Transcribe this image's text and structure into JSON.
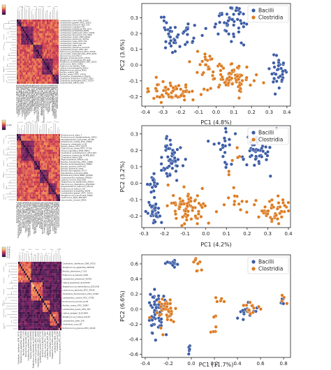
{
  "heatmap_panels": [
    {
      "colorbar_ticks": [],
      "labels": [
        "Lactobacillus_iners_DSM_13335",
        "Lactobacillus_gasseri_ATCC_33323",
        "Lactobacillus_johnsonii_NCC_533",
        "Lactobacillus_crispatus_ST1",
        "Lactobacillus_helveticus_DPC_4571",
        "Lactobacillus_acidophilus_NCFM",
        "Lactobacillus_delbrueckii_ATCC_11842",
        "Lactobacillus_fermentum_IFO_3956",
        "Lactobacillus_reuteri_DSM_20016",
        "Lactobacillus_plantarum_WCFS1",
        "Lactobacillus_casei_ATCC_334",
        "Lactobacillus_rhamnosus_GG",
        "Lactobacillus_sakei_23K",
        "Lactobacillus_salivarius_UCC118",
        "Lactobacillus_brevis_ATCC_367",
        "Pediococcus_pentosaceus_ATCC_25745",
        "Leuconostoc_mesenteroides_ATCC_8293",
        "Oenococcus_oeni_PSU-1",
        "Weissella_koreensis_KACC_15510",
        "Streptococcus_pyogenes_M1_GAS",
        "Streptococcus_thermophilus_LMG_18311",
        "Lactococcus_lactis_Il1403",
        "Enterococcus_faecalis_V583",
        "Listeria_monocytogenes_EGD-e",
        "Staphylococcus_aureus_N315",
        "Bacillus_subtilis_168",
        "Bacillus_cereus_ATCC_14579",
        "Geobacillus_kaustophilus_HTA426",
        "Clostridium_botulinum_A_ATCC_3502",
        "Clostridium_perfringens_ATCC_13124",
        "Clostridioides_difficile_630"
      ]
    },
    {
      "colorbar_ticks": [
        "0.45"
      ],
      "labels": [
        "Ruminococcus_albus_7",
        "Ruminococcus_champanellensis_18P13",
        "Faecalibacterium_prausnitzii_A2-165",
        "Eubacterium_rectale_ATCC_33656",
        "Roseburia_intestinalis_L1-82",
        "Blautia_obeum_ATCC_29174",
        "Coprococcus_comes_ATCC_27758",
        "Dorea_longicatena_DSM_13814",
        "Clostridium_acetobutylicum_ATCC_824",
        "Clostridium_beijerinckii_NCIMB_8052",
        "Clostridium_tetani_E88",
        "Peptoclostridium_difficile_630",
        "Bacillus_licheniformis_ATCC_14580",
        "Bacillus_amyloliquefaciens_FZB42",
        "Bacillus_pumilus_SAFR-032",
        "Bacillus_anthracis_Ames",
        "Bacillus_thuringiensis_97-27",
        "Paenibacillus_polymyxa_E681",
        "Brevibacillus_brevis_NBRC_100599",
        "Oceanobacillus_iheyensis_HTE831",
        "Listeria_innocua_Clip11262",
        "Staphylococcus_epidermidis_RP62A",
        "Macrococcus_caseolyticus_JCSC5402",
        "Exiguobacterium_sibiricum_255-15",
        "Enterococcus_faecium_DO",
        "Lactobacillus_acidophilus_NCFM",
        "Lactobacillus_gasseri_ATCC_33323",
        "Streptococcus_pneumoniae_TIGR4",
        "Lactococcus_lactis_MG1363",
        "Leuconostoc_citreum_KM20"
      ]
    },
    {
      "colorbar_ticks": [
        "1.0",
        "0.8",
        "0.6",
        "0.4",
        "0.2"
      ],
      "labels": [
        "Clostridium_clariflavum_DSM_19732",
        "Streptococcus_agalactiae_2603V/R",
        "Bacillus_halodurans_C-125",
        "Enterococcus_faecalis_V583",
        "Lactobacillus_plantarum_WCFS1",
        "Listeria_welshimeri_SLCC5334",
        "Staphylococcus_haemolyticus_JCSC1435",
        "Lactococcus_garvieae_ATCC_49156",
        "Clostridium_thermocellum_ATCC_27405",
        "Lactobacillus_ruminis_ATCC_27782",
        "Ruminococcus_bromii_L2-63",
        "Bacillus_cereus_ATCC_10987",
        "Lactobacillus_brevis_ATCC_367",
        "Listeria_seeligeri_SLCC3954",
        "Streptococcus_mutans_UA159",
        "Lactobacillus_sakei_23K",
        "Clostridium_novyi_NT",
        "Ruminococcus_gnavus_ATCC_29149"
      ]
    }
  ],
  "chart_data": [
    {
      "type": "scatter",
      "xlabel": "PC1 (4.8%)",
      "ylabel": "PC2 (3.6%)",
      "xlim": [
        -0.42,
        0.42
      ],
      "ylim": [
        -0.26,
        0.39
      ],
      "xticks": [
        -0.4,
        -0.3,
        -0.2,
        -0.1,
        0.0,
        0.1,
        0.2,
        0.3,
        0.4
      ],
      "yticks": [
        -0.2,
        -0.1,
        0.0,
        0.1,
        0.2,
        0.3
      ],
      "legend": "top-right",
      "colors": [
        "#3b5ba5",
        "#dd7a1f"
      ],
      "series": [
        {
          "name": "Bacilli",
          "clusters": [
            {
              "n": 45,
              "cx": -0.21,
              "cy": 0.19,
              "sx": 0.065,
              "sy": 0.05,
              "seed": 11
            },
            {
              "n": 45,
              "cx": 0.08,
              "cy": 0.29,
              "sx": 0.04,
              "sy": 0.045,
              "seed": 12
            },
            {
              "n": 40,
              "cx": 0.35,
              "cy": -0.045,
              "sx": 0.035,
              "sy": 0.05,
              "seed": 13
            },
            {
              "n": 5,
              "cx": 0.12,
              "cy": 0.17,
              "sx": 0.03,
              "sy": 0.03,
              "seed": 14
            }
          ]
        },
        {
          "name": "Clostridia",
          "clusters": [
            {
              "n": 65,
              "cx": -0.26,
              "cy": -0.17,
              "sx": 0.075,
              "sy": 0.035,
              "seed": 21
            },
            {
              "n": 75,
              "cx": 0.08,
              "cy": -0.075,
              "sx": 0.06,
              "sy": 0.04,
              "seed": 22
            },
            {
              "n": 20,
              "cx": -0.08,
              "cy": 0.02,
              "sx": 0.05,
              "sy": 0.045,
              "seed": 23
            }
          ]
        }
      ]
    },
    {
      "type": "scatter",
      "xlabel": "PC1 (4.2%)",
      "ylabel": "PC2 (3.2%)",
      "xlim": [
        -0.31,
        0.41
      ],
      "ylim": [
        -0.27,
        0.35
      ],
      "xticks": [
        -0.3,
        -0.2,
        -0.1,
        0.0,
        0.1,
        0.2,
        0.3,
        0.4
      ],
      "yticks": [
        -0.2,
        -0.1,
        0.0,
        0.1,
        0.2,
        0.3
      ],
      "legend": "top-right",
      "colors": [
        "#3b5ba5",
        "#dd7a1f"
      ],
      "series": [
        {
          "name": "Bacilli",
          "clusters": [
            {
              "n": 55,
              "cx": -0.17,
              "cy": 0.15,
              "sx": 0.025,
              "sy": 0.065,
              "seed": 31
            },
            {
              "n": 35,
              "cx": -0.25,
              "cy": -0.17,
              "sx": 0.018,
              "sy": 0.035,
              "seed": 32
            },
            {
              "n": 15,
              "cx": -0.26,
              "cy": 0.0,
              "sx": 0.015,
              "sy": 0.035,
              "seed": 33
            },
            {
              "n": 45,
              "cx": 0.24,
              "cy": 0.2,
              "sx": 0.04,
              "sy": 0.055,
              "seed": 34
            },
            {
              "n": 20,
              "cx": 0.09,
              "cy": 0.22,
              "sx": 0.025,
              "sy": 0.06,
              "seed": 35
            }
          ]
        },
        {
          "name": "Clostridia",
          "clusters": [
            {
              "n": 75,
              "cx": -0.08,
              "cy": -0.15,
              "sx": 0.04,
              "sy": 0.05,
              "seed": 41
            },
            {
              "n": 45,
              "cx": 0.33,
              "cy": -0.16,
              "sx": 0.04,
              "sy": 0.04,
              "seed": 42
            },
            {
              "n": 15,
              "cx": 0.14,
              "cy": -0.12,
              "sx": 0.06,
              "sy": 0.04,
              "seed": 43
            },
            {
              "n": 6,
              "cx": 0.15,
              "cy": 0.12,
              "sx": 0.04,
              "sy": 0.06,
              "seed": 44
            }
          ]
        }
      ]
    },
    {
      "type": "scatter",
      "xlabel": "PC1 (11.7%)",
      "ylabel": "PC2 (6.6%)",
      "xlim": [
        -0.43,
        0.86
      ],
      "ylim": [
        -0.64,
        0.72
      ],
      "xticks": [
        -0.4,
        -0.2,
        0.0,
        0.2,
        0.4,
        0.6,
        0.8
      ],
      "yticks": [
        -0.6,
        -0.4,
        -0.2,
        0.0,
        0.2,
        0.4,
        0.6
      ],
      "legend": "top-right",
      "colors": [
        "#3b5ba5",
        "#dd7a1f"
      ],
      "series": [
        {
          "name": "Bacilli",
          "clusters": [
            {
              "n": 60,
              "cx": -0.3,
              "cy": -0.05,
              "sx": 0.04,
              "sy": 0.15,
              "seed": 51
            },
            {
              "n": 20,
              "cx": 0.5,
              "cy": -0.02,
              "sx": 0.04,
              "sy": 0.06,
              "seed": 52
            },
            {
              "n": 14,
              "cx": -0.17,
              "cy": 0.6,
              "sx": 0.025,
              "sy": 0.02,
              "seed": 53
            },
            {
              "n": 5,
              "cx": -0.01,
              "cy": -0.55,
              "sx": 0.015,
              "sy": 0.03,
              "seed": 54
            },
            {
              "n": 6,
              "cx": 0.77,
              "cy": 0.1,
              "sx": 0.02,
              "sy": 0.03,
              "seed": 55
            }
          ]
        },
        {
          "name": "Clostridia",
          "clusters": [
            {
              "n": 40,
              "cx": -0.23,
              "cy": 0.0,
              "sx": 0.05,
              "sy": 0.1,
              "seed": 61
            },
            {
              "n": 15,
              "cx": 0.5,
              "cy": 0.02,
              "sx": 0.05,
              "sy": 0.05,
              "seed": 62
            },
            {
              "n": 8,
              "cx": 0.03,
              "cy": 0.55,
              "sx": 0.03,
              "sy": 0.05,
              "seed": 63
            },
            {
              "n": 5,
              "cx": 0.27,
              "cy": 0.12,
              "sx": 0.03,
              "sy": 0.03,
              "seed": 64
            },
            {
              "n": 4,
              "cx": 0.2,
              "cy": -0.3,
              "sx": 0.02,
              "sy": 0.04,
              "seed": 65
            },
            {
              "n": 4,
              "cx": 0.79,
              "cy": 0.08,
              "sx": 0.02,
              "sy": 0.03,
              "seed": 66
            },
            {
              "n": 4,
              "cx": 0.2,
              "cy": -0.08,
              "sx": 0.02,
              "sy": 0.02,
              "seed": 67
            }
          ]
        }
      ]
    }
  ]
}
